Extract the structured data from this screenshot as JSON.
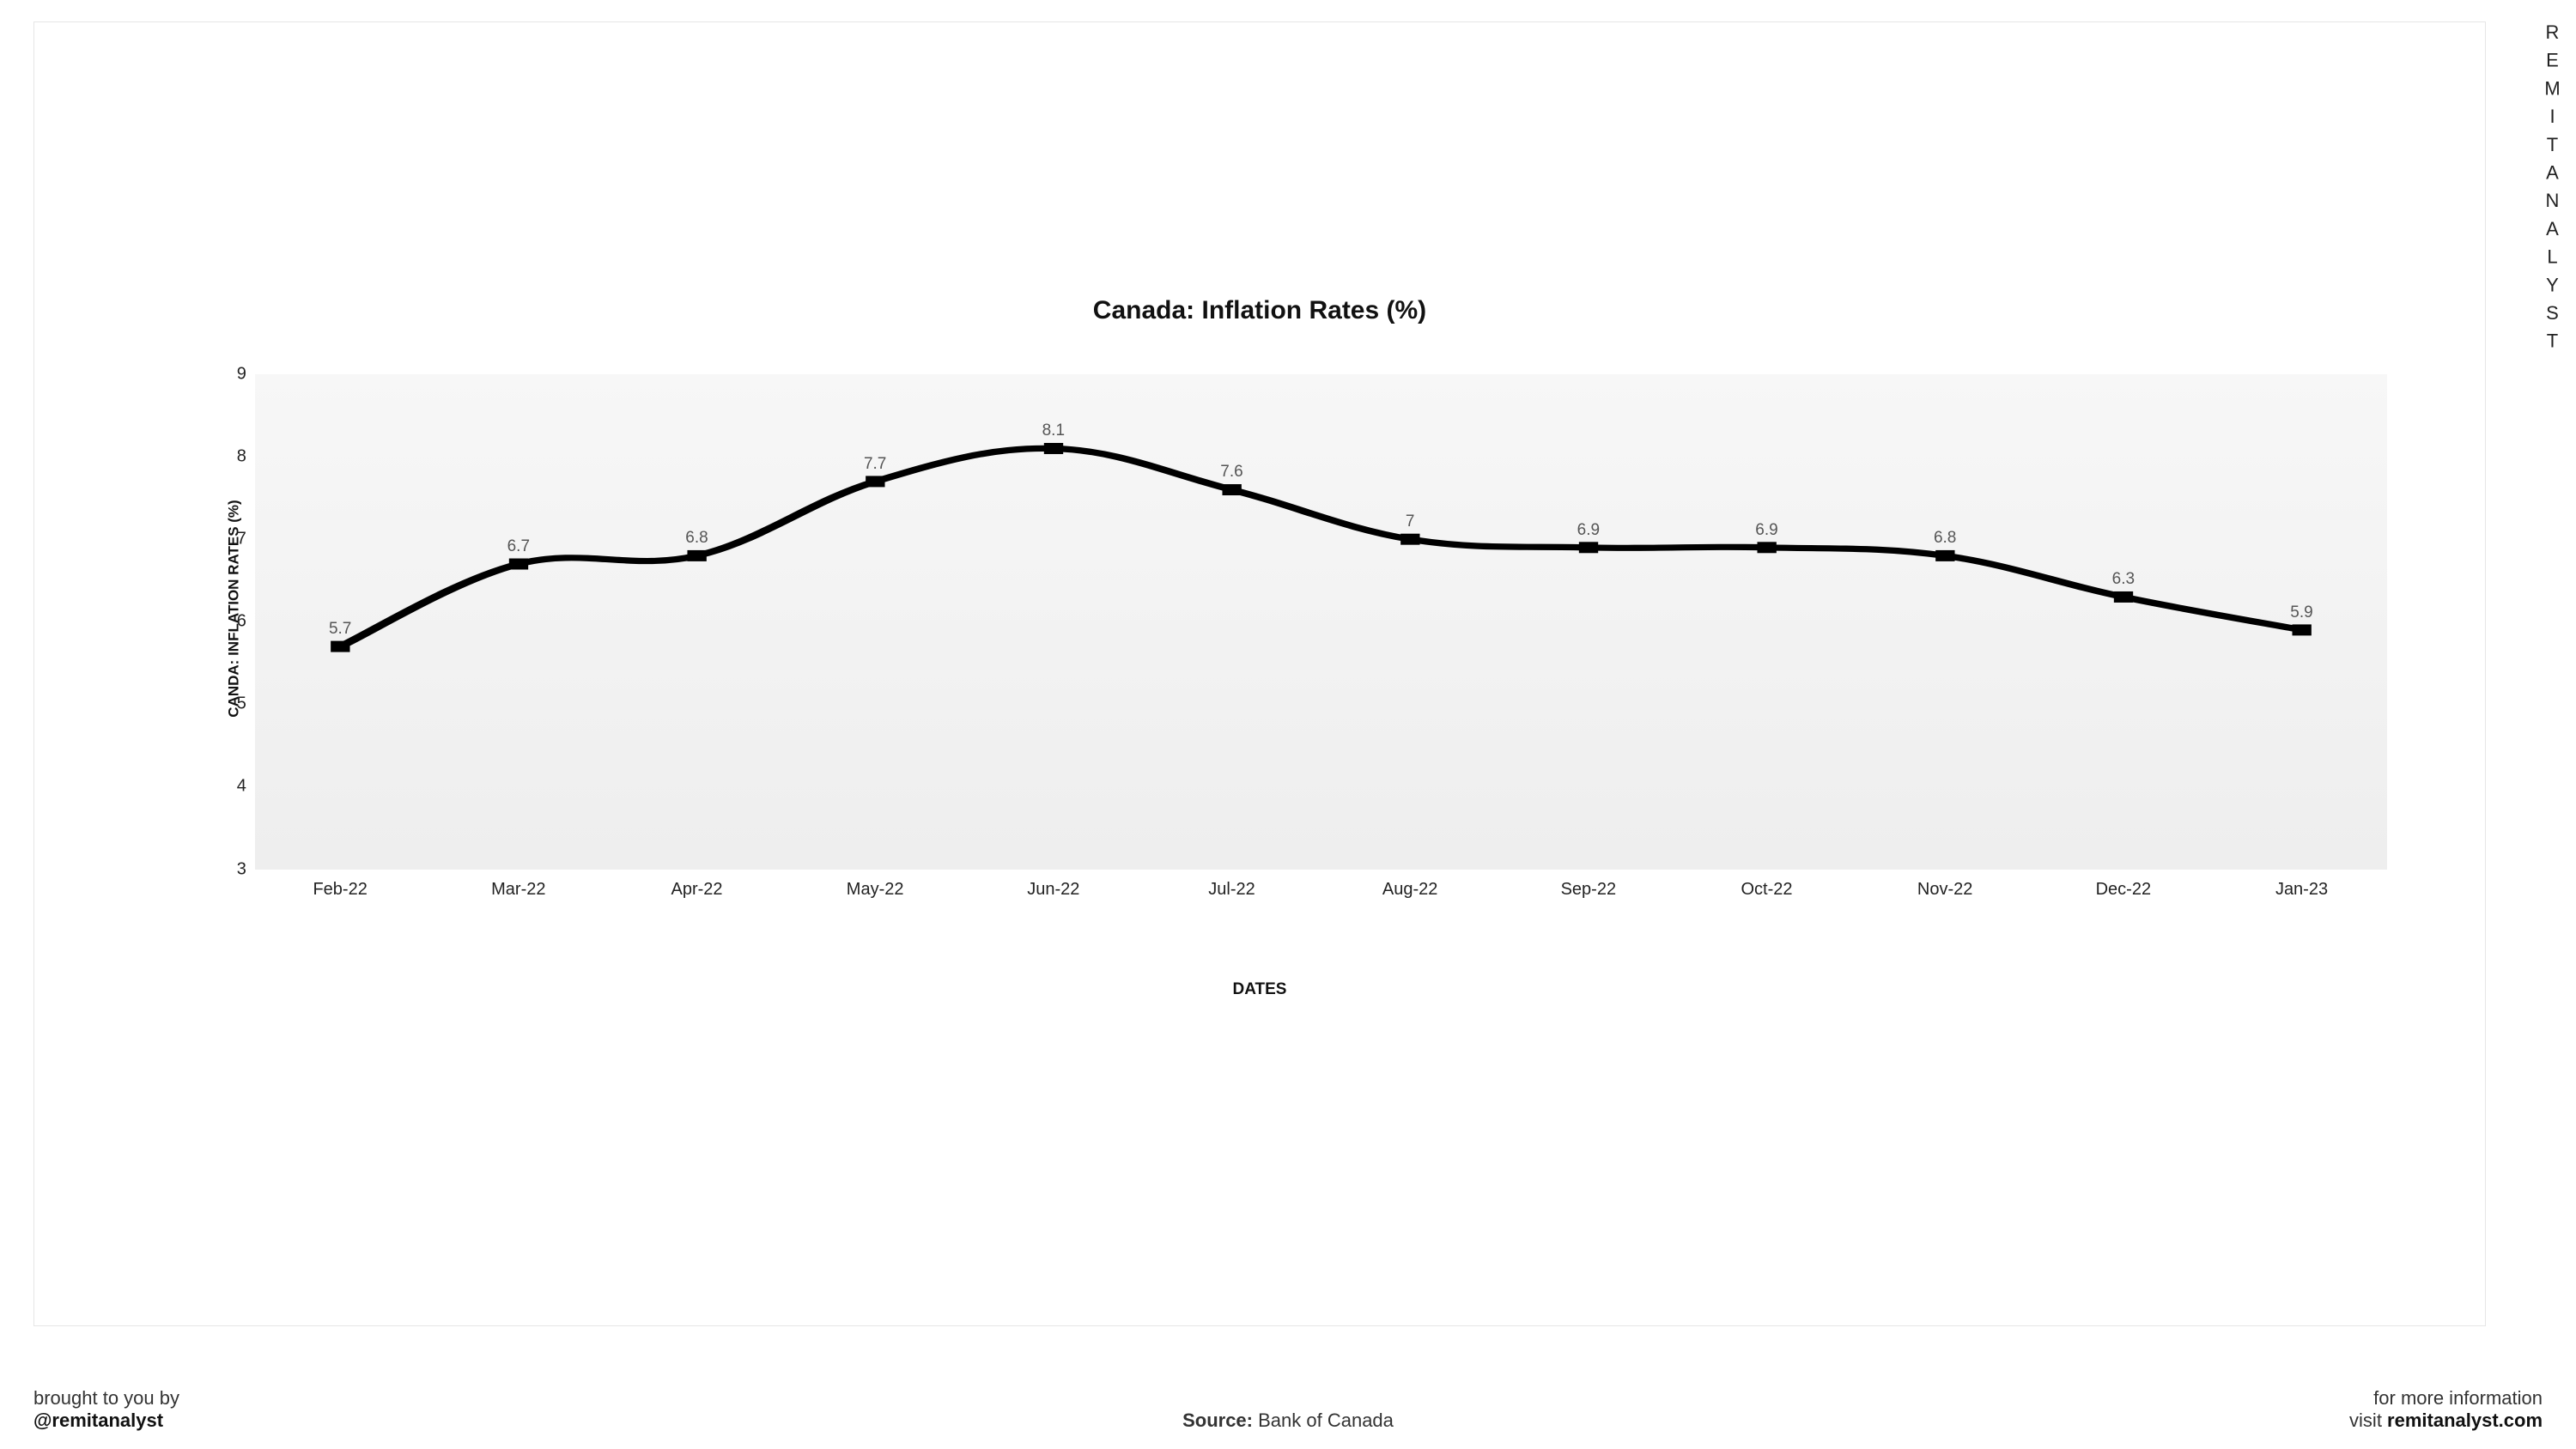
{
  "chart": {
    "type": "line",
    "title": "Canada: Inflation Rates (%)",
    "title_fontsize": 30,
    "y_axis_label": "CANDA: INFLATION RATES (%)",
    "x_axis_label": "DATES",
    "categories": [
      "Feb-22",
      "Mar-22",
      "Apr-22",
      "May-22",
      "Jun-22",
      "Jul-22",
      "Aug-22",
      "Sep-22",
      "Oct-22",
      "Nov-22",
      "Dec-22",
      "Jan-23"
    ],
    "values": [
      5.7,
      6.7,
      6.8,
      7.7,
      8.1,
      7.6,
      7.0,
      6.9,
      6.9,
      6.8,
      6.3,
      5.9
    ],
    "value_labels": [
      "5.7",
      "6.7",
      "6.8",
      "7.7",
      "8.1",
      "7.6",
      "7",
      "6.9",
      "6.9",
      "6.8",
      "6.3",
      "5.9"
    ],
    "ylim": [
      3,
      9
    ],
    "yticks": [
      3,
      4,
      5,
      6,
      7,
      8,
      9
    ],
    "line_color": "#000000",
    "line_width": 5,
    "marker_style": "square",
    "marker_size": 9,
    "marker_color": "#000000",
    "data_label_color": "#555555",
    "data_label_fontsize": 19,
    "tick_label_fontsize": 20,
    "tick_label_color": "#222222",
    "axis_title_fontsize": 18,
    "background_gradient_top": "#f7f7f7",
    "background_gradient_bottom": "#eeeeee",
    "page_background": "#ffffff",
    "frame_border_color": "#e6e6e6",
    "smooth": true
  },
  "watermark": "REMITANALYST",
  "footer": {
    "left_line1": "brought to you by",
    "left_handle": "@remitanalyst",
    "source_label": "Source:",
    "source_value": "Bank of Canada",
    "right_line1": "for more information",
    "right_line2_prefix": "visit ",
    "right_site": "remitanalyst.com"
  }
}
